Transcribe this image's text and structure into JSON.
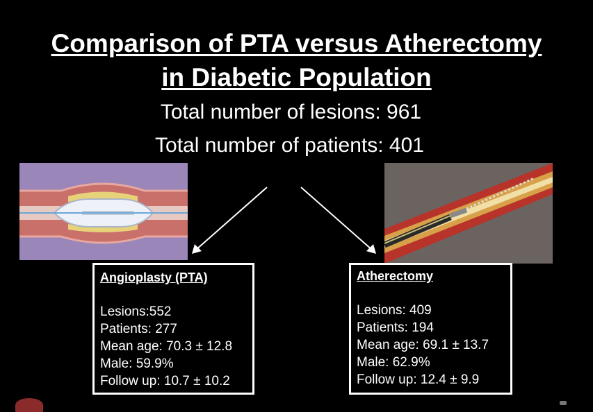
{
  "slide": {
    "title_line1": "Comparison of PTA versus Atherectomy",
    "title_line2": "in Diabetic Population",
    "total_lesions": "Total number of lesions: 961",
    "total_patients": "Total number of patients: 401"
  },
  "pta": {
    "heading": "Angioplasty (PTA)",
    "lesions": "Lesions:552",
    "patients": "Patients: 277",
    "mean_age": "Mean age: 70.3 ± 12.8",
    "male": "Male: 59.9%",
    "follow_up": "Follow up: 10.7 ± 10.2"
  },
  "atherectomy": {
    "heading": "Atherectomy",
    "lesions": "Lesions: 409",
    "patients": "Patients: 194",
    "mean_age": "Mean age: 69.1 ± 13.7",
    "male": "Male: 62.9%",
    "follow_up": "Follow up: 12.4 ± 9.9"
  },
  "colors": {
    "background": "#000000",
    "text": "#ffffff",
    "pta_illustration_bg": "#9a86b8",
    "atherectomy_illustration_bg": "#6b6360"
  }
}
